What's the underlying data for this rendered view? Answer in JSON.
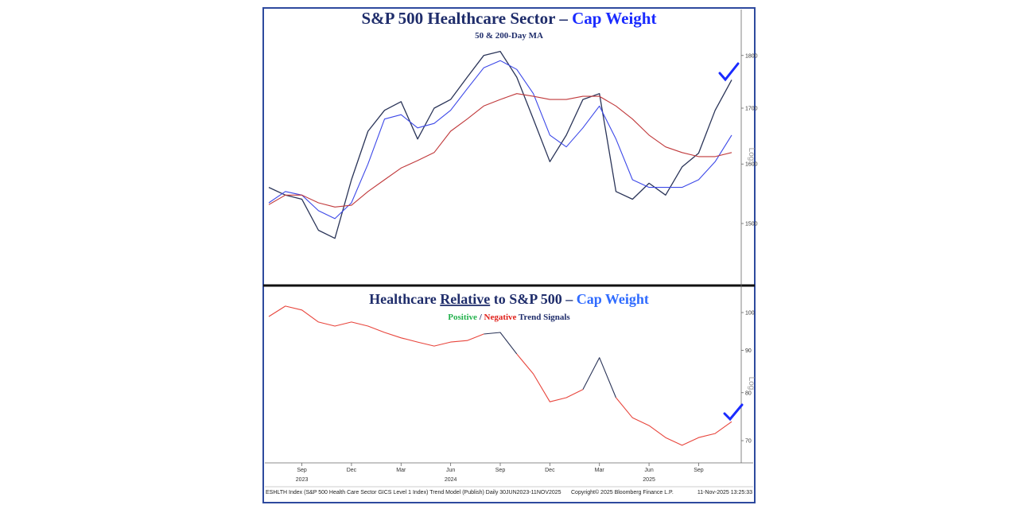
{
  "chart_data": [
    {
      "type": "line",
      "log": true,
      "title": [
        "S&P 500 Healthcare Sector – ",
        "Cap Weight"
      ],
      "title_colors": [
        "#1f2d6b",
        "#1a2bff"
      ],
      "subtitle": "50 & 200-Day MA",
      "scale_label": "Log",
      "x": [
        "2023-07",
        "2023-08",
        "2023-09",
        "2023-10",
        "2023-11",
        "2023-12",
        "2024-01",
        "2024-02",
        "2024-03",
        "2024-04",
        "2024-05",
        "2024-06",
        "2024-07",
        "2024-08",
        "2024-09",
        "2024-10",
        "2024-11",
        "2024-12",
        "2025-01",
        "2025-02",
        "2025-03",
        "2025-04",
        "2025-05",
        "2025-06",
        "2025-07",
        "2025-08",
        "2025-09",
        "2025-10",
        "2025-11"
      ],
      "xlim": [
        "2023-07",
        "2025-11"
      ],
      "ylim": [
        1406,
        1892
      ],
      "yticks": [
        1500,
        1600,
        1700,
        1800
      ],
      "series": [
        {
          "color": "#2a3458",
          "values": [
            1560,
            1547,
            1540,
            1489,
            1476,
            1573,
            1658,
            1696,
            1712,
            1644,
            1700,
            1716,
            1758,
            1800,
            1808,
            1758,
            1680,
            1604,
            1651,
            1716,
            1727,
            1553,
            1540,
            1567,
            1547,
            1595,
            1619,
            1696,
            1753
          ]
        },
        {
          "color": "#3c48e8",
          "values": [
            1534,
            1553,
            1547,
            1521,
            1508,
            1534,
            1600,
            1680,
            1688,
            1664,
            1672,
            1696,
            1736,
            1776,
            1790,
            1773,
            1727,
            1651,
            1630,
            1664,
            1704,
            1644,
            1573,
            1560,
            1560,
            1560,
            1573,
            1604,
            1651
          ]
        },
        {
          "color": "#c0393b",
          "values": [
            1531,
            1547,
            1547,
            1534,
            1527,
            1530,
            1553,
            1573,
            1593,
            1606,
            1620,
            1658,
            1680,
            1704,
            1716,
            1727,
            1722,
            1716,
            1716,
            1722,
            1722,
            1704,
            1680,
            1651,
            1630,
            1620,
            1613,
            1613,
            1620
          ]
        }
      ]
    },
    {
      "type": "line",
      "log": true,
      "title": [
        "Healthcare ",
        "Relative",
        " to S&P 500 – ",
        "Cap Weight"
      ],
      "title_colors": [
        "#1f2d6b",
        "#1f2d6b",
        "#1f2d6b",
        "#2f6bff"
      ],
      "subtitle_rest": " Trend Signals",
      "subtitle_sep": " / ",
      "scale_label": "Log",
      "x": [
        "2023-07",
        "2023-08",
        "2023-09",
        "2023-10",
        "2023-11",
        "2023-12",
        "2024-01",
        "2024-02",
        "2024-03",
        "2024-04",
        "2024-05",
        "2024-06",
        "2024-07",
        "2024-08",
        "2024-09",
        "2024-10",
        "2024-11",
        "2024-12",
        "2025-01",
        "2025-02",
        "2025-03",
        "2025-04",
        "2025-05",
        "2025-06",
        "2025-07",
        "2025-08",
        "2025-09",
        "2025-10",
        "2025-11"
      ],
      "xlim": [
        "2023-07",
        "2025-11"
      ],
      "ylim": [
        65.8,
        107.1
      ],
      "yticks": [
        70,
        80,
        90,
        100
      ],
      "xticks": [
        {
          "value": "2023-09",
          "label": "Sep"
        },
        {
          "value": "2023-12",
          "label": "Dec"
        },
        {
          "value": "2024-03",
          "label": "Mar"
        },
        {
          "value": "2024-06",
          "label": "Jun"
        },
        {
          "value": "2024-09",
          "label": "Sep"
        },
        {
          "value": "2024-12",
          "label": "Dec"
        },
        {
          "value": "2025-03",
          "label": "Mar"
        },
        {
          "value": "2025-06",
          "label": "Jun"
        },
        {
          "value": "2025-09",
          "label": "Sep"
        }
      ],
      "year_labels": [
        {
          "value": "2023-09",
          "label": "2023"
        },
        {
          "value": "2024-06",
          "label": "2024"
        },
        {
          "value": "2025-06",
          "label": "2025"
        }
      ],
      "series": [
        {
          "name": "Positive",
          "color": "#2a3458",
          "label_color": "#22b14c",
          "values": [
            null,
            null,
            null,
            null,
            null,
            null,
            null,
            null,
            null,
            null,
            null,
            null,
            null,
            94.2,
            94.6,
            89.1,
            null,
            null,
            null,
            80.7,
            88.2,
            78.9,
            null,
            null,
            null,
            null,
            null,
            null,
            null
          ]
        },
        {
          "name": "Negative",
          "color": "#e8453c",
          "label_color": "#e0201b",
          "values": [
            98.9,
            101.8,
            100.7,
            97.4,
            96.3,
            97.4,
            96.3,
            94.6,
            93.2,
            92.1,
            91.1,
            92.1,
            92.5,
            94.2,
            null,
            89.1,
            84.3,
            78.0,
            78.9,
            80.7,
            null,
            78.9,
            74.6,
            73.0,
            70.6,
            69.1,
            70.6,
            71.4,
            73.8
          ]
        }
      ]
    }
  ],
  "footer": {
    "left": "ESHLTH Index (S&P 500 Health Care Sector GICS Level 1 Index) Trend Model (Publish) Daily 30JUN2023-11NOV2025",
    "middle": "Copyright© 2025 Bloomberg Finance L.P.",
    "right": "11-Nov-2025 13:25:33"
  }
}
